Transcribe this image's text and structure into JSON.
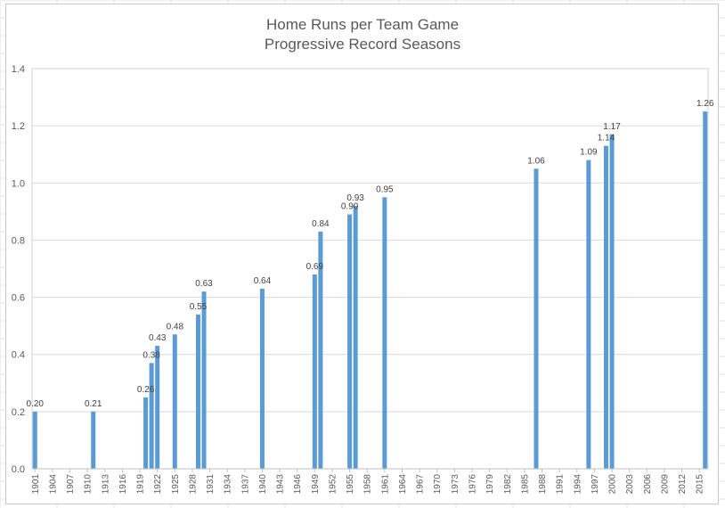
{
  "chart": {
    "title_line1": "Home Runs per Team Game",
    "title_line2": "Progressive Record Seasons"
  },
  "chart_data": {
    "type": "bar",
    "title": "Home Runs per Team Game",
    "subtitle": "Progressive Record Seasons",
    "xlabel": "",
    "ylabel": "",
    "ylim": [
      0,
      1.4
    ],
    "y_ticks": [
      "0.0",
      "0.2",
      "0.4",
      "0.6",
      "0.8",
      "1.0",
      "1.2",
      "1.4"
    ],
    "x_range": [
      1901,
      2016
    ],
    "x_tick_labels": [
      "1901",
      "1904",
      "1907",
      "1910",
      "1913",
      "1916",
      "1919",
      "1922",
      "1925",
      "1928",
      "1931",
      "1934",
      "1937",
      "1940",
      "1943",
      "1946",
      "1949",
      "1952",
      "1955",
      "1958",
      "1961",
      "1964",
      "1967",
      "1970",
      "1973",
      "1976",
      "1979",
      "1982",
      "1985",
      "1988",
      "1991",
      "1994",
      "1997",
      "2000",
      "2003",
      "2006",
      "2009",
      "2012",
      "2015"
    ],
    "grid": true,
    "color": "#5b9bd5",
    "bars": [
      {
        "year": 1901,
        "value": 0.2,
        "label": "0.20"
      },
      {
        "year": 1911,
        "value": 0.2,
        "label": "0.21"
      },
      {
        "year": 1920,
        "value": 0.25,
        "label": "0.26"
      },
      {
        "year": 1921,
        "value": 0.37,
        "label": "0.38"
      },
      {
        "year": 1922,
        "value": 0.43,
        "label": "0.43"
      },
      {
        "year": 1925,
        "value": 0.47,
        "label": "0.48"
      },
      {
        "year": 1929,
        "value": 0.54,
        "label": "0.55"
      },
      {
        "year": 1930,
        "value": 0.62,
        "label": "0.63"
      },
      {
        "year": 1940,
        "value": 0.63,
        "label": "0.64"
      },
      {
        "year": 1949,
        "value": 0.68,
        "label": "0.69"
      },
      {
        "year": 1950,
        "value": 0.83,
        "label": "0.84"
      },
      {
        "year": 1955,
        "value": 0.89,
        "label": "0.90"
      },
      {
        "year": 1956,
        "value": 0.92,
        "label": "0.93"
      },
      {
        "year": 1961,
        "value": 0.95,
        "label": "0.95"
      },
      {
        "year": 1987,
        "value": 1.05,
        "label": "1.06"
      },
      {
        "year": 1996,
        "value": 1.08,
        "label": "1.09"
      },
      {
        "year": 1999,
        "value": 1.13,
        "label": "1.14"
      },
      {
        "year": 2000,
        "value": 1.17,
        "label": "1.17"
      },
      {
        "year": 2016,
        "value": 1.25,
        "label": "1.26"
      }
    ]
  }
}
